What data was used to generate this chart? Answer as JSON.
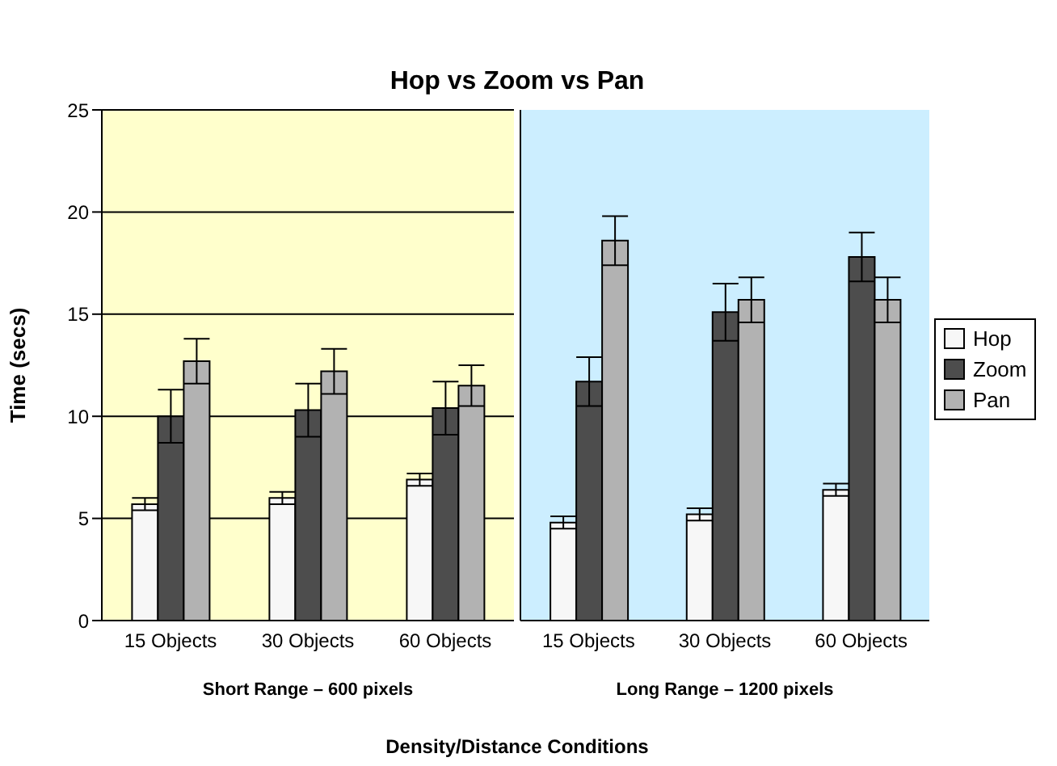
{
  "chart_data": [
    {
      "type": "bar",
      "title": "Hop vs Zoom vs Pan",
      "xlabel": "Short Range – 600 pixels",
      "ylabel": "Time (secs)",
      "categories": [
        "15 Objects",
        "30 Objects",
        "60 Objects"
      ],
      "series": [
        {
          "name": "Hop",
          "color": "#f7f7f7",
          "values": [
            5.7,
            6.0,
            6.9
          ],
          "errors": [
            0.3,
            0.3,
            0.3
          ]
        },
        {
          "name": "Zoom",
          "color": "#4d4d4d",
          "values": [
            10.0,
            10.3,
            10.4
          ],
          "errors": [
            1.3,
            1.3,
            1.3
          ]
        },
        {
          "name": "Pan",
          "color": "#b2b2b2",
          "values": [
            12.7,
            12.2,
            11.5
          ],
          "errors": [
            1.1,
            1.1,
            1.0
          ]
        }
      ],
      "ylim": [
        0,
        25
      ],
      "yticks": [
        0,
        5,
        10,
        15,
        20,
        25
      ],
      "grid": "y",
      "legend": "right"
    },
    {
      "type": "bar",
      "xlabel": "Long Range – 1200 pixels",
      "categories": [
        "15 Objects",
        "30 Objects",
        "60 Objects"
      ],
      "series": [
        {
          "color": "#f7f7f7",
          "values": [
            4.8,
            5.2,
            6.4
          ],
          "errors": [
            0.3,
            0.3,
            0.3
          ]
        },
        {
          "color": "#4d4d4d",
          "values": [
            11.7,
            15.1,
            17.8
          ],
          "errors": [
            1.2,
            1.4,
            1.2
          ]
        },
        {
          "color": "#b2b2b2",
          "values": [
            18.6,
            15.7,
            15.7
          ],
          "errors": [
            1.2,
            1.1,
            1.1
          ]
        }
      ],
      "ylim": [
        0,
        25
      ],
      "yticks": [
        0,
        5,
        10,
        15,
        20,
        25
      ],
      "grid": "y",
      "tick_labels": "x",
      "annotations": [
        "Density/Distance Conditions"
      ]
    }
  ]
}
